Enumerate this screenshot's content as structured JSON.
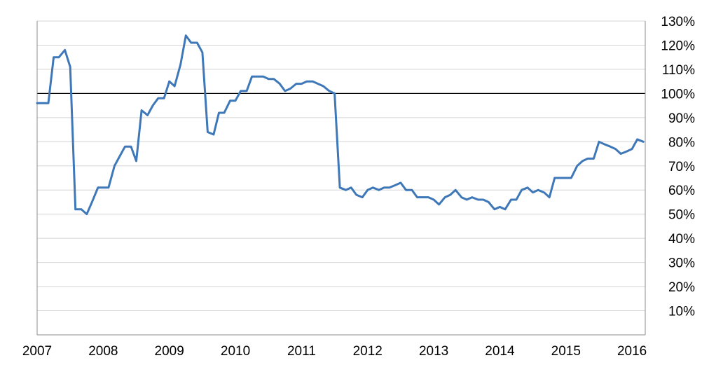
{
  "chart_data": {
    "type": "line",
    "title": "",
    "xlabel": "",
    "ylabel": "",
    "colors": {
      "series": "#3f78b8",
      "reference_line": "#000000",
      "grid": "#d4d4d4"
    },
    "grid": true,
    "legend": "none",
    "x_range": [
      2007.0,
      2016.2
    ],
    "ylim": [
      0,
      130
    ],
    "y_axis_side": "right",
    "y_ticks": [
      {
        "value": 10,
        "label": "10%"
      },
      {
        "value": 20,
        "label": "20%"
      },
      {
        "value": 30,
        "label": "30%"
      },
      {
        "value": 40,
        "label": "40%"
      },
      {
        "value": 50,
        "label": "50%"
      },
      {
        "value": 60,
        "label": "60%"
      },
      {
        "value": 70,
        "label": "70%"
      },
      {
        "value": 80,
        "label": "80%"
      },
      {
        "value": 90,
        "label": "90%"
      },
      {
        "value": 100,
        "label": "100%"
      },
      {
        "value": 110,
        "label": "110%"
      },
      {
        "value": 120,
        "label": "120%"
      },
      {
        "value": 130,
        "label": "130%"
      }
    ],
    "x_ticks": [
      {
        "value": 2007,
        "label": "2007"
      },
      {
        "value": 2008,
        "label": "2008"
      },
      {
        "value": 2009,
        "label": "2009"
      },
      {
        "value": 2010,
        "label": "2010"
      },
      {
        "value": 2011,
        "label": "2011"
      },
      {
        "value": 2012,
        "label": "2012"
      },
      {
        "value": 2013,
        "label": "2013"
      },
      {
        "value": 2014,
        "label": "2014"
      },
      {
        "value": 2015,
        "label": "2015"
      },
      {
        "value": 2016,
        "label": "2016"
      }
    ],
    "reference_line": 100,
    "series": [
      {
        "x": [
          2007.0,
          2007.17,
          2007.25,
          2007.33,
          2007.42,
          2007.5,
          2007.58,
          2007.67,
          2007.75,
          2007.83,
          2007.92,
          2008.0,
          2008.08,
          2008.17,
          2008.25,
          2008.33,
          2008.42,
          2008.5,
          2008.58,
          2008.67,
          2008.75,
          2008.83,
          2008.92,
          2009.0,
          2009.08,
          2009.17,
          2009.25,
          2009.33,
          2009.42,
          2009.5,
          2009.58,
          2009.67,
          2009.75,
          2009.83,
          2009.92,
          2010.0,
          2010.08,
          2010.17,
          2010.25,
          2010.33,
          2010.42,
          2010.5,
          2010.58,
          2010.67,
          2010.75,
          2010.83,
          2010.92,
          2011.0,
          2011.08,
          2011.17,
          2011.25,
          2011.33,
          2011.42,
          2011.5,
          2011.58,
          2011.67,
          2011.75,
          2011.83,
          2011.92,
          2012.0,
          2012.08,
          2012.17,
          2012.25,
          2012.33,
          2012.42,
          2012.5,
          2012.58,
          2012.67,
          2012.75,
          2012.83,
          2012.92,
          2013.0,
          2013.08,
          2013.17,
          2013.25,
          2013.33,
          2013.42,
          2013.5,
          2013.58,
          2013.67,
          2013.75,
          2013.83,
          2013.92,
          2014.0,
          2014.08,
          2014.17,
          2014.25,
          2014.33,
          2014.42,
          2014.5,
          2014.58,
          2014.67,
          2014.75,
          2014.83,
          2014.92,
          2015.0,
          2015.08,
          2015.17,
          2015.25,
          2015.33,
          2015.42,
          2015.5,
          2015.58,
          2015.67,
          2015.75,
          2015.83,
          2015.92,
          2016.0,
          2016.08,
          2016.17
        ],
        "values": [
          96,
          96,
          115,
          115,
          118,
          111,
          52,
          52,
          50,
          55,
          61,
          61,
          61,
          70,
          74,
          78,
          78,
          72,
          93,
          91,
          95,
          98,
          98,
          105,
          103,
          112,
          124,
          121,
          121,
          117,
          84,
          83,
          92,
          92,
          97,
          97,
          101,
          101,
          107,
          107,
          107,
          106,
          106,
          104,
          101,
          102,
          104,
          104,
          105,
          105,
          104,
          103,
          101,
          100,
          61,
          60,
          61,
          58,
          57,
          60,
          61,
          60,
          61,
          61,
          62,
          63,
          60,
          60,
          57,
          57,
          57,
          56,
          54,
          57,
          58,
          60,
          57,
          56,
          57,
          56,
          56,
          55,
          52,
          53,
          52,
          56,
          56,
          60,
          61,
          59,
          60,
          59,
          57,
          65,
          65,
          65,
          65,
          70,
          72,
          73,
          73,
          80,
          79,
          78,
          77,
          75,
          76,
          77,
          81,
          80
        ]
      }
    ]
  }
}
